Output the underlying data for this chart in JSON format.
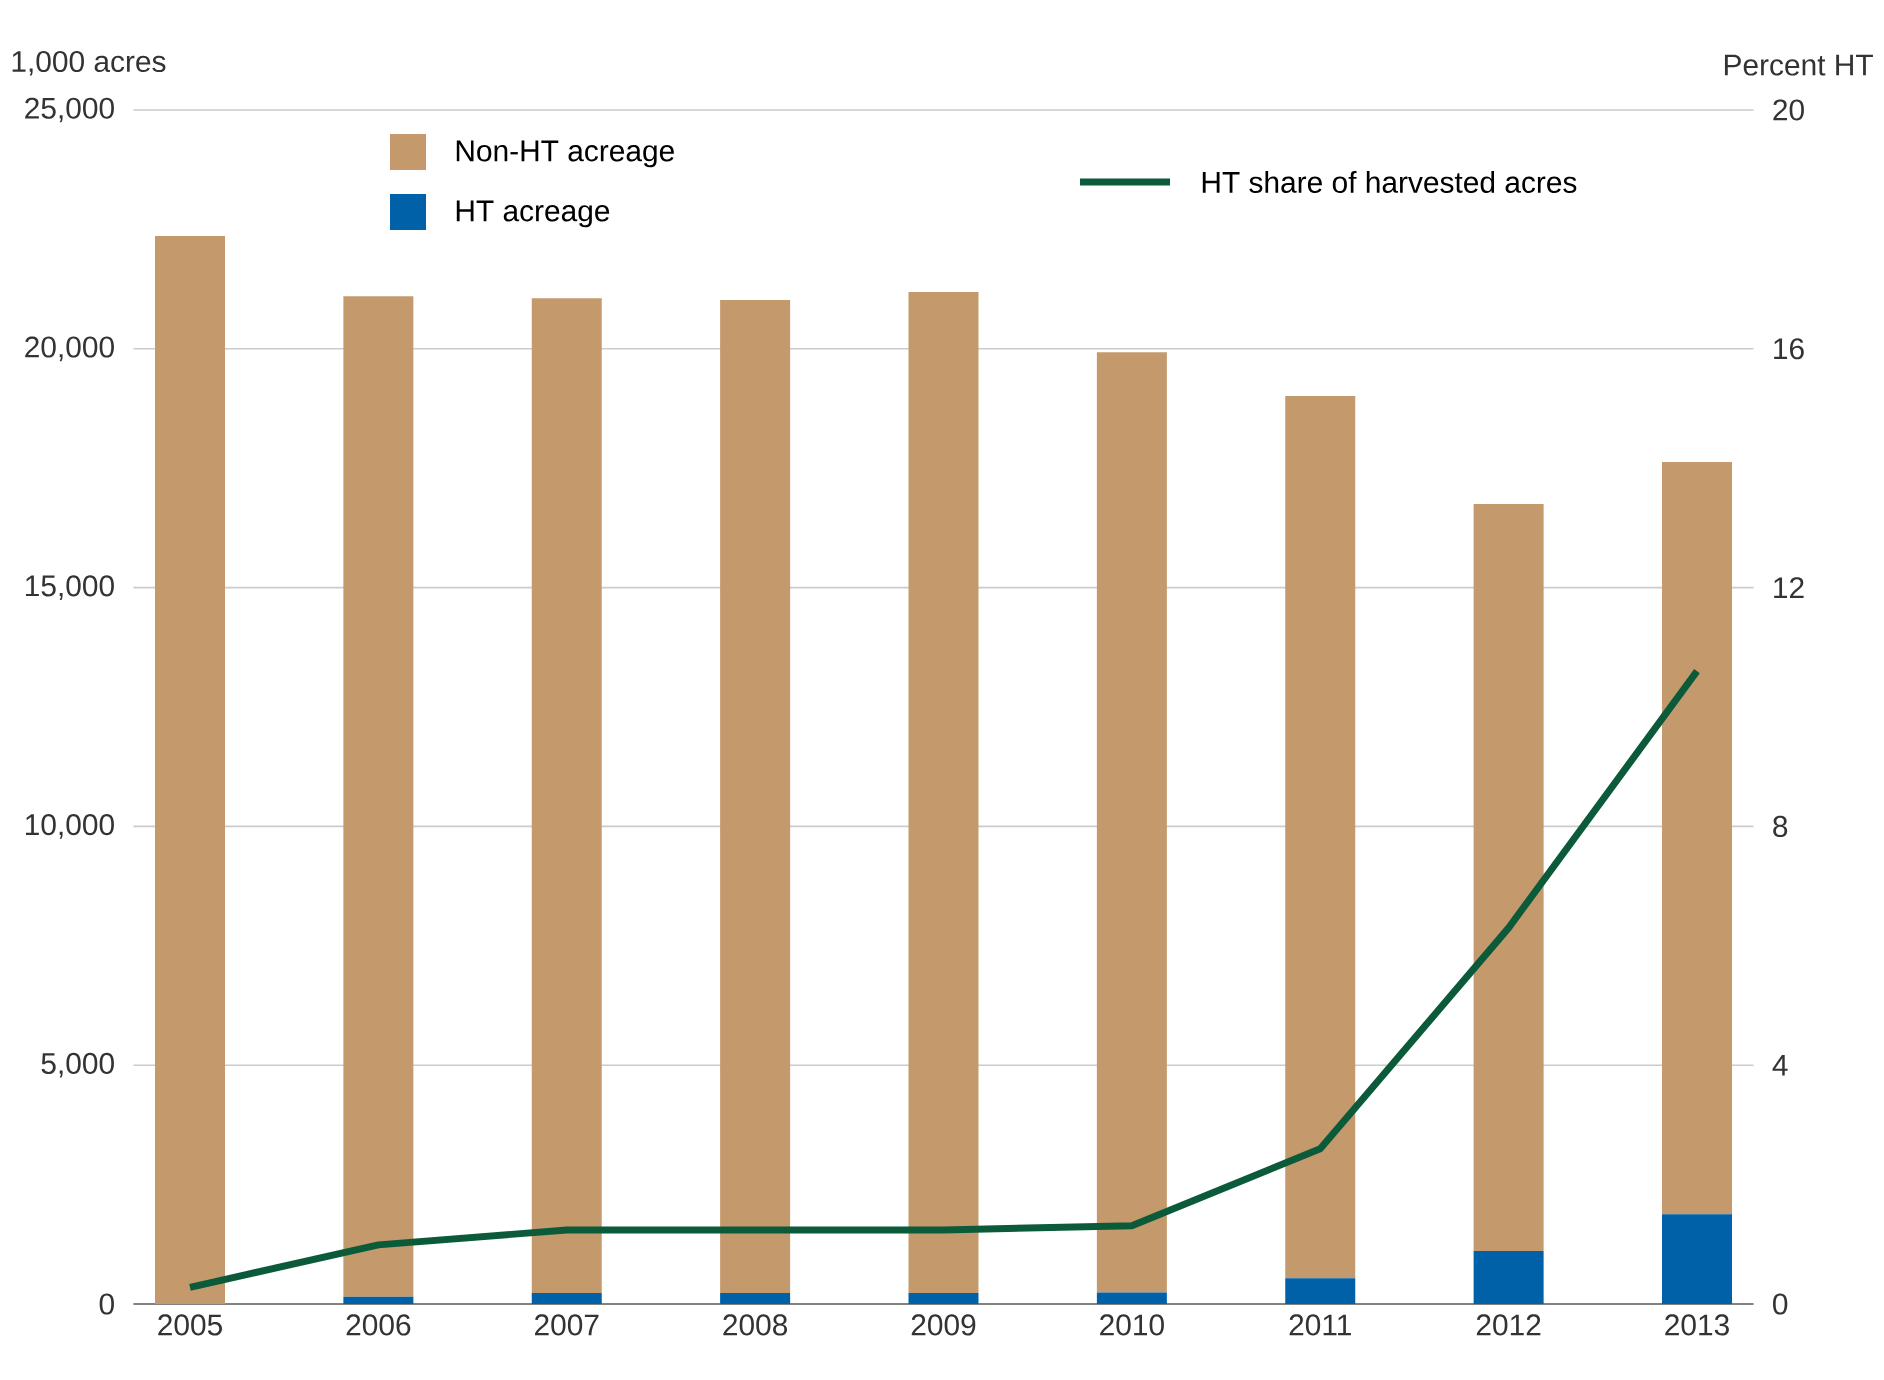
{
  "chart_data": {
    "type": "bar",
    "stacked": true,
    "ylabel": "1,000 acres",
    "y2label": "Percent HT",
    "categories": [
      "2005",
      "2006",
      "2007",
      "2008",
      "2009",
      "2010",
      "2011",
      "2012",
      "2013"
    ],
    "series": [
      {
        "name": "HT acreage",
        "color": "#0061a8",
        "values": [
          0,
          150,
          230,
          230,
          230,
          240,
          540,
          1110,
          1880
        ]
      },
      {
        "name": "Non-HT acreage",
        "color": "#c49a6c",
        "values": [
          22360,
          20950,
          20830,
          20790,
          20960,
          19690,
          18470,
          15640,
          15750
        ]
      },
      {
        "name": "HT share of harvested acres",
        "type": "line",
        "axis": "y2",
        "color": "#0b5a3a",
        "values": [
          0.28,
          0.99,
          1.24,
          1.24,
          1.24,
          1.31,
          2.6,
          6.3,
          10.6
        ]
      }
    ],
    "ylim": [
      0,
      25000
    ],
    "yticks": [
      {
        "value": 0,
        "label": "0"
      },
      {
        "value": 5000,
        "label": "5,000"
      },
      {
        "value": 10000,
        "label": "10,000"
      },
      {
        "value": 15000,
        "label": "15,000"
      },
      {
        "value": 20000,
        "label": "20,000"
      },
      {
        "value": 25000,
        "label": "25,000"
      }
    ],
    "y2lim": [
      0,
      20
    ],
    "y2ticks": [
      0,
      4,
      8,
      12,
      16,
      20
    ],
    "grid": "y",
    "legend": "top"
  }
}
